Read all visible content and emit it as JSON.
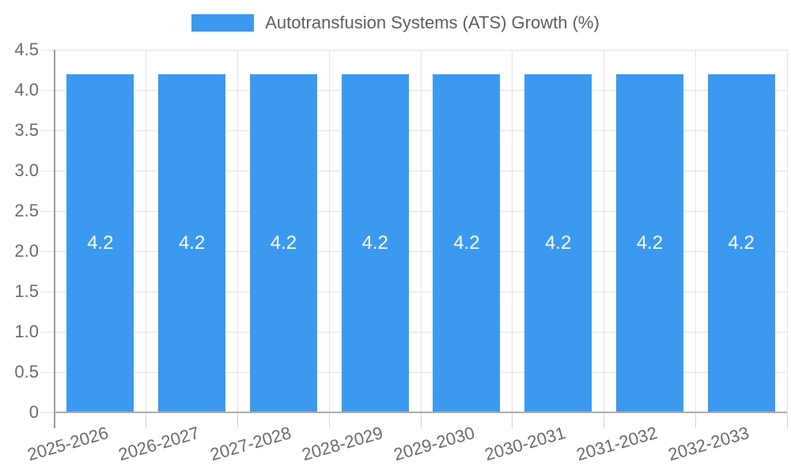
{
  "legend": {
    "label": "Autotransfusion Systems (ATS) Growth (%)"
  },
  "chart_data": {
    "type": "bar",
    "title": "Autotransfusion Systems (ATS) Growth (%)",
    "categories": [
      "2025-2026",
      "2026-2027",
      "2027-2028",
      "2028-2029",
      "2029-2030",
      "2030-2031",
      "2031-2032",
      "2032-2033"
    ],
    "values": [
      4.2,
      4.2,
      4.2,
      4.2,
      4.2,
      4.2,
      4.2,
      4.2
    ],
    "bar_labels": [
      "4.2",
      "4.2",
      "4.2",
      "4.2",
      "4.2",
      "4.2",
      "4.2",
      "4.2"
    ],
    "xlabel": "",
    "ylabel": "",
    "ylim": [
      0,
      4.5
    ],
    "ytick_step": 0.5,
    "ytick_labels": [
      "0",
      "0.5",
      "1.0",
      "1.5",
      "2.0",
      "2.5",
      "3.0",
      "3.5",
      "4.0",
      "4.5"
    ],
    "grid": true,
    "legend_position": "top",
    "bar_color": "#3b9af0",
    "value_label_color": "#ffffff",
    "axis_text_color": "#6b6b6b",
    "gridline_color": "#e4e4e4",
    "axis_line_color": "#9b9b9b"
  }
}
